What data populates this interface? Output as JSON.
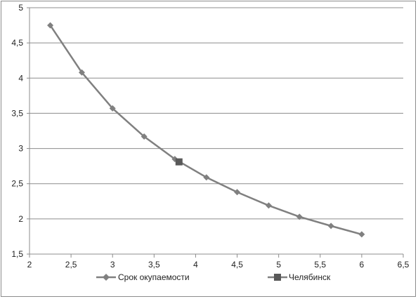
{
  "chart_data": {
    "type": "line",
    "title": "",
    "xlabel": "",
    "ylabel": "",
    "xlim": [
      2,
      6.5
    ],
    "ylim": [
      1.5,
      5
    ],
    "x_ticks": [
      2,
      2.5,
      3,
      3.5,
      4,
      4.5,
      5,
      5.5,
      6,
      6.5
    ],
    "x_tick_labels": [
      "2",
      "2,5",
      "3",
      "3,5",
      "4",
      "4,5",
      "5",
      "5,5",
      "6",
      "6,5"
    ],
    "y_ticks": [
      1.5,
      2,
      2.5,
      3,
      3.5,
      4,
      4.5,
      5
    ],
    "y_tick_labels": [
      "1,5",
      "2",
      "2,5",
      "3",
      "3,5",
      "4",
      "4,5",
      "5"
    ],
    "grid": "horizontal",
    "legend_position": "bottom",
    "series": [
      {
        "name": "Срок окупаемости",
        "marker": "diamond",
        "color": "#808080",
        "line": true,
        "points": [
          [
            2.25,
            4.75
          ],
          [
            2.63,
            4.08
          ],
          [
            3.0,
            3.57
          ],
          [
            3.38,
            3.17
          ],
          [
            3.75,
            2.85
          ],
          [
            4.13,
            2.59
          ],
          [
            4.5,
            2.38
          ],
          [
            4.88,
            2.19
          ],
          [
            5.25,
            2.03
          ],
          [
            5.63,
            1.9
          ],
          [
            6.0,
            1.78
          ]
        ]
      },
      {
        "name": "Челябинск",
        "marker": "square",
        "color": "#595959",
        "line": false,
        "points": [
          [
            3.8,
            2.81
          ]
        ]
      }
    ]
  }
}
